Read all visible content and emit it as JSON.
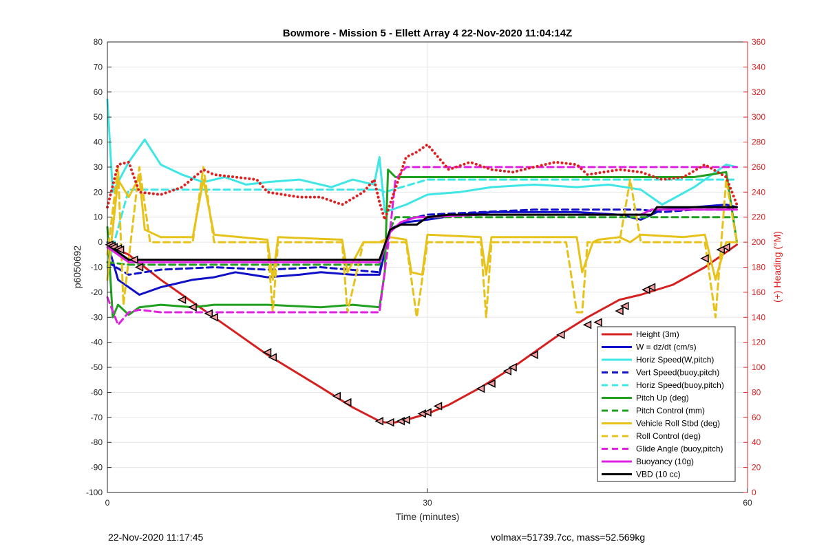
{
  "chart_data": {
    "type": "line",
    "title": "Bowmore - Mission 5 - Ellett Array 4 22-Nov-2020 11:04:14Z",
    "xlabel": "Time (minutes)",
    "ylabel": "p6050692",
    "y2label": "(+) Heading (°M)",
    "xlim": [
      0,
      60
    ],
    "ylim": [
      -100,
      80
    ],
    "y2lim": [
      0,
      360
    ],
    "xticks": [
      0,
      30,
      60
    ],
    "yticks": [
      -100,
      -90,
      -80,
      -70,
      -60,
      -50,
      -40,
      -30,
      -20,
      -10,
      0,
      10,
      20,
      30,
      40,
      50,
      60,
      70,
      80
    ],
    "y2ticks": [
      0,
      20,
      40,
      60,
      80,
      100,
      120,
      140,
      160,
      180,
      200,
      220,
      240,
      260,
      280,
      300,
      320,
      340,
      360
    ],
    "grid_x": [
      30
    ],
    "legend_position": "bottom-right",
    "colors": {
      "red": "#d62020",
      "blue": "#1010c8",
      "cyan": "#3fe6e6",
      "green": "#1fa01f",
      "yellow": "#e6c21a",
      "magenta": "#e020e0",
      "black": "#000000",
      "heading": "#e02020"
    },
    "series": [
      {
        "name": "Height (3m)",
        "color": "red",
        "style": "solid",
        "x": [
          0,
          2,
          5,
          10,
          15,
          20,
          23,
          25.5,
          26,
          27,
          28,
          30,
          32,
          35,
          38,
          42,
          45,
          48,
          50,
          53,
          56,
          59
        ],
        "y": [
          -1,
          -5,
          -15,
          -30,
          -45,
          -58,
          -66,
          -71.5,
          -72,
          -72,
          -71,
          -68.5,
          -65,
          -58,
          -50,
          -38,
          -30,
          -23,
          -21,
          -17,
          -10,
          -1
        ]
      },
      {
        "name": "W = dz/dt (cm/s)",
        "color": "blue",
        "style": "solid",
        "x": [
          0,
          1,
          3,
          5,
          8,
          10,
          12,
          15,
          18,
          20,
          23,
          25.5,
          26.5,
          28,
          30,
          33,
          36,
          40,
          44,
          48,
          50,
          52,
          55,
          58,
          59
        ],
        "y": [
          0,
          -15,
          -21,
          -18,
          -15,
          -14,
          -12,
          -14,
          -13,
          -12,
          -13,
          -13,
          5,
          8,
          9,
          11,
          12,
          12,
          12,
          11,
          9,
          13,
          14,
          15,
          14
        ]
      },
      {
        "name": "Horiz Speed(W,pitch)",
        "color": "cyan",
        "style": "solid",
        "x": [
          0,
          0.5,
          2,
          3.5,
          5,
          7,
          9,
          11,
          13,
          15,
          18,
          21,
          23,
          25,
          25.5,
          26,
          28,
          30,
          33,
          36,
          40,
          44,
          47,
          50,
          52,
          55,
          58,
          59
        ],
        "y": [
          57,
          20,
          32,
          41,
          31,
          27,
          24,
          26,
          23,
          24,
          25,
          22,
          25,
          23,
          34,
          12,
          15,
          19,
          20,
          22,
          23,
          22,
          23,
          21,
          15,
          22,
          31,
          30
        ]
      },
      {
        "name": "Vert Speed(buoy,pitch)",
        "color": "blue",
        "style": "dashed",
        "x": [
          0,
          2,
          5,
          10,
          15,
          20,
          25.5,
          26.5,
          28,
          30,
          35,
          40,
          45,
          50,
          52,
          55,
          58,
          59
        ],
        "y": [
          -8,
          -13,
          -11,
          -10,
          -11,
          -10,
          -12,
          5,
          9,
          11,
          12,
          13,
          13,
          13,
          12,
          13,
          13,
          14
        ]
      },
      {
        "name": "Horiz Speed(buoy,pitch)",
        "color": "cyan",
        "style": "dashed",
        "x": [
          0,
          2,
          10,
          20,
          25.5,
          26,
          30,
          40,
          50,
          58,
          59
        ],
        "y": [
          -10,
          21,
          21,
          21,
          21,
          20,
          25,
          25,
          25,
          25,
          25
        ]
      },
      {
        "name": "Pitch Up (deg)",
        "color": "green",
        "style": "solid",
        "x": [
          0,
          0.5,
          1,
          2,
          3,
          5,
          8,
          10,
          15,
          20,
          23,
          25.5,
          26,
          26.3,
          27,
          30,
          35,
          40,
          45,
          50,
          55,
          58,
          59
        ],
        "y": [
          6,
          -30,
          -25,
          -29,
          -26,
          -25,
          -26,
          -25,
          -25,
          -26,
          -25,
          -26,
          -12,
          29,
          26,
          26,
          26,
          26,
          26,
          26,
          26,
          28,
          0
        ]
      },
      {
        "name": "Pitch Control (mm)",
        "color": "green",
        "style": "dashed",
        "x": [
          0,
          2,
          10,
          20,
          25.5,
          26.5,
          27,
          30,
          40,
          50,
          58,
          59
        ],
        "y": [
          -8,
          -9,
          -9,
          -9,
          -9,
          5,
          10,
          10,
          10,
          10,
          10,
          10
        ]
      },
      {
        "name": "Vehicle Roll Stbd (deg)",
        "color": "yellow",
        "style": "solid",
        "x": [
          0,
          1,
          2,
          3,
          3.5,
          5,
          8,
          9,
          10,
          15,
          15.5,
          16,
          22,
          22.5,
          24,
          25.5,
          26.5,
          28,
          28.5,
          29.5,
          30,
          35,
          35.5,
          36,
          37,
          44,
          44.5,
          45.5,
          46,
          48,
          49,
          50,
          54,
          56,
          57,
          58,
          59
        ],
        "y": [
          -15,
          25,
          18,
          26,
          5,
          2,
          2,
          25,
          3,
          1,
          -15,
          2,
          1,
          -12,
          0,
          0,
          2,
          1,
          -12,
          -13,
          3,
          2,
          -13,
          2,
          2,
          2,
          -12,
          0,
          1,
          2,
          0,
          3,
          2,
          3,
          -15,
          0,
          0
        ]
      },
      {
        "name": "Roll Control (deg)",
        "color": "yellow",
        "style": "dashed",
        "x": [
          0,
          1,
          1.5,
          3,
          4,
          8,
          9,
          10,
          15,
          15.5,
          16,
          22,
          22.5,
          24,
          26,
          28,
          29,
          30,
          35,
          35.5,
          36,
          37,
          43,
          44,
          44.5,
          45,
          48,
          49,
          50,
          56,
          57,
          58,
          59
        ],
        "y": [
          -5,
          30,
          -25,
          30,
          0,
          0,
          30,
          0,
          0,
          -28,
          0,
          0,
          -28,
          0,
          0,
          0,
          -30,
          0,
          0,
          -30,
          0,
          0,
          0,
          -28,
          -28,
          0,
          0,
          25,
          0,
          0,
          -30,
          25,
          0
        ]
      },
      {
        "name": "Glide Angle (buoy,pitch)",
        "color": "magenta",
        "style": "dashed",
        "x": [
          0,
          1,
          2,
          3,
          5,
          10,
          15,
          20,
          25.5,
          26.5,
          27,
          28,
          30,
          40,
          50,
          58,
          59
        ],
        "y": [
          -22,
          -33,
          -28,
          -27,
          -28,
          -28,
          -28,
          -28,
          -28,
          5,
          25,
          30,
          30,
          30,
          30,
          30,
          30
        ]
      },
      {
        "name": "Buoyancy (10g)",
        "color": "magenta",
        "style": "solid",
        "x": [
          0,
          1,
          2,
          5,
          10,
          15,
          20,
          25.5,
          26.5,
          27.5,
          29,
          30,
          35,
          40,
          45,
          50,
          51,
          55,
          58,
          59
        ],
        "y": [
          -2,
          -5,
          -8,
          -8,
          -8,
          -8,
          -8,
          -8,
          4,
          8,
          10,
          10,
          11,
          11,
          11,
          11,
          13,
          13,
          13,
          13
        ]
      },
      {
        "name": "VBD (10 cc)",
        "color": "black",
        "style": "solid",
        "x": [
          0,
          1,
          2,
          5,
          10,
          15,
          20,
          25.5,
          26.5,
          27.5,
          29,
          30,
          32,
          40,
          45,
          51,
          51.5,
          55,
          58,
          59
        ],
        "y": [
          -1,
          -4,
          -7,
          -7,
          -7,
          -7,
          -7,
          -7,
          5,
          7,
          7,
          10,
          11,
          11,
          11,
          11,
          14,
          14,
          14,
          14
        ]
      },
      {
        "name": "Heading",
        "color": "heading",
        "style": "dotted",
        "axis": "right",
        "x": [
          0,
          1,
          2,
          3,
          5,
          7,
          9,
          10,
          12,
          14,
          15,
          18,
          20,
          22,
          24,
          25,
          25.5,
          26,
          28,
          29,
          30,
          32,
          34,
          36,
          38,
          40,
          42,
          44,
          45,
          48,
          50,
          52,
          54,
          56,
          58,
          59
        ],
        "y": [
          228,
          262,
          264,
          240,
          238,
          244,
          258,
          254,
          252,
          250,
          240,
          236,
          236,
          230,
          240,
          250,
          232,
          218,
          268,
          272,
          278,
          258,
          264,
          258,
          256,
          260,
          264,
          262,
          254,
          258,
          256,
          250,
          252,
          262,
          252,
          230
        ]
      }
    ],
    "markers": {
      "symbol": "triangle",
      "x": [
        0.2,
        0.4,
        0.6,
        1,
        1.2,
        2.5,
        3,
        7,
        8,
        9.5,
        10,
        15,
        15.5,
        21.5,
        22.5,
        25.5,
        26.5,
        27.5,
        28,
        29.5,
        30,
        31,
        35,
        36,
        37.5,
        38,
        40,
        42.5,
        45,
        46,
        48,
        48.5,
        50.5,
        51,
        56,
        57.5,
        58
      ],
      "y": [
        -1,
        -1.5,
        -2,
        -2.5,
        -3,
        -7,
        -10,
        -23,
        -26,
        -28.5,
        -30,
        -44,
        -46,
        -61.5,
        -64,
        -71.5,
        -72,
        -71.5,
        -71,
        -68.5,
        -68,
        -65.5,
        -58.5,
        -56.5,
        -51.5,
        -50,
        -45,
        -37,
        -33,
        -32,
        -27.5,
        -25.5,
        -19,
        -18,
        -6.5,
        -3,
        -2
      ]
    }
  },
  "footer": {
    "timestamp": "22-Nov-2020 11:17:45",
    "stats": "volmax=51739.7cc, mass=52.569kg"
  }
}
